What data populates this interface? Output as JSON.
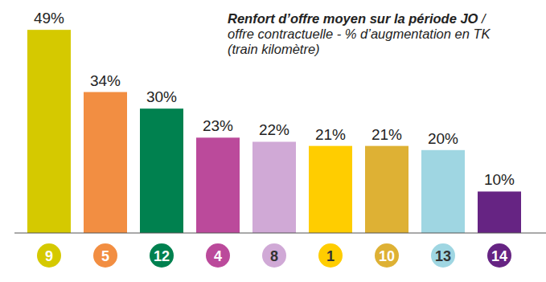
{
  "chart_data": {
    "type": "bar",
    "title": "Renfort d’offre moyen sur la période JO",
    "subtitle": "/ offre contractuelle - % d’augmentation en TK (train kilomètre)",
    "categories": [
      "9",
      "5",
      "12",
      "4",
      "8",
      "1",
      "10",
      "13",
      "14"
    ],
    "values": [
      49,
      34,
      30,
      23,
      22,
      21,
      21,
      20,
      10
    ],
    "value_labels": [
      "49%",
      "34%",
      "30%",
      "23%",
      "22%",
      "21%",
      "21%",
      "20%",
      "10%"
    ],
    "colors": [
      "#d5c900",
      "#f28e42",
      "#00814f",
      "#bb4a9b",
      "#d0a9d6",
      "#ffcd00",
      "#deb134",
      "#9fd6e2",
      "#662483"
    ],
    "ylim": [
      0,
      50
    ],
    "data_labels": true,
    "tick_labels": "x",
    "grid": false
  }
}
